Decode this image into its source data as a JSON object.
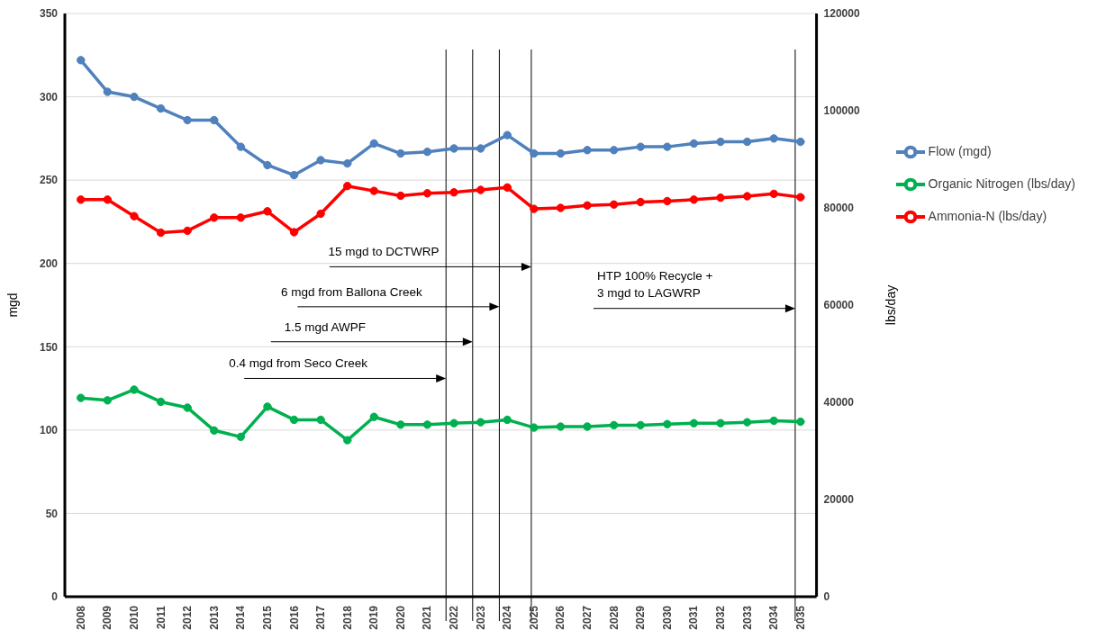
{
  "chart_data": {
    "type": "line",
    "x": [
      2008,
      2009,
      2010,
      2011,
      2012,
      2013,
      2014,
      2015,
      2016,
      2017,
      2018,
      2019,
      2020,
      2021,
      2022,
      2023,
      2024,
      2025,
      2026,
      2027,
      2028,
      2029,
      2030,
      2031,
      2032,
      2033,
      2034,
      2035
    ],
    "xlim": [
      2007.4,
      2035.6
    ],
    "xticks": [
      2008,
      2009,
      2010,
      2011,
      2012,
      2013,
      2014,
      2015,
      2016,
      2017,
      2018,
      2019,
      2020,
      2021,
      2022,
      2023,
      2024,
      2025,
      2026,
      2027,
      2028,
      2029,
      2030,
      2031,
      2032,
      2033,
      2034,
      2035
    ],
    "ylabel": "mgd",
    "y2label": "lbs/day",
    "ylim": [
      0,
      350
    ],
    "yticks": [
      0,
      50,
      100,
      150,
      200,
      250,
      300,
      350
    ],
    "y2lim": [
      0,
      120000
    ],
    "y2ticks": [
      0,
      20000,
      40000,
      60000,
      80000,
      100000,
      120000
    ],
    "series": [
      {
        "name": "Flow (mgd)",
        "color": "#4f81bd",
        "values": [
          322,
          303,
          300,
          293,
          286,
          286,
          270,
          259,
          253,
          262,
          260,
          272,
          266,
          267,
          269,
          269,
          277,
          266,
          266,
          268,
          268,
          270,
          270,
          272,
          273,
          273,
          275,
          273
        ]
      },
      {
        "name": "Organic Nitrogen (lbs/day)",
        "color": "#00b050",
        "axis": "y2",
        "values": [
          40900,
          40400,
          42600,
          40100,
          38900,
          34200,
          32900,
          39100,
          36400,
          36400,
          32200,
          37000,
          35400,
          35400,
          35700,
          35900,
          36400,
          34800,
          35000,
          35000,
          35300,
          35300,
          35500,
          35700,
          35700,
          35900,
          36200,
          36000
        ]
      },
      {
        "name": "Ammonia-N (lbs/day)",
        "color": "#ff0000",
        "axis": "y2",
        "values": [
          81700,
          81700,
          78300,
          74900,
          75300,
          78000,
          78000,
          79300,
          75000,
          78800,
          84500,
          83500,
          82500,
          83000,
          83200,
          83700,
          84200,
          79800,
          80000,
          80500,
          80700,
          81200,
          81400,
          81700,
          82100,
          82400,
          82900,
          82200
        ]
      }
    ],
    "ref_lines": [
      {
        "axis": "x",
        "value": 2021.7,
        "color": "#000000"
      },
      {
        "axis": "x",
        "value": 2022.7,
        "color": "#000000"
      },
      {
        "axis": "x",
        "value": 2023.7,
        "color": "#000000"
      },
      {
        "axis": "x",
        "value": 2024.9,
        "color": "#000000"
      },
      {
        "axis": "x",
        "value": 2034.8,
        "color": "#000000"
      }
    ],
    "annotations": [
      {
        "text": "15 mgd to DCTWRP",
        "x": 2024.9,
        "y": 198
      },
      {
        "text": "6 mgd from Ballona Creek",
        "x": 2023.7,
        "y": 174
      },
      {
        "text": "1.5 mgd AWPF",
        "x": 2022.7,
        "y": 153
      },
      {
        "text": "0.4 mgd from Seco Creek",
        "x": 2021.7,
        "y": 131
      },
      {
        "text": "HTP 100% Recycle +\n3 mgd to LAGWRP",
        "x": 2034.8,
        "y": 173
      }
    ],
    "grid": "y",
    "legend": "right",
    "marker": "circle",
    "line_style": "solid"
  }
}
